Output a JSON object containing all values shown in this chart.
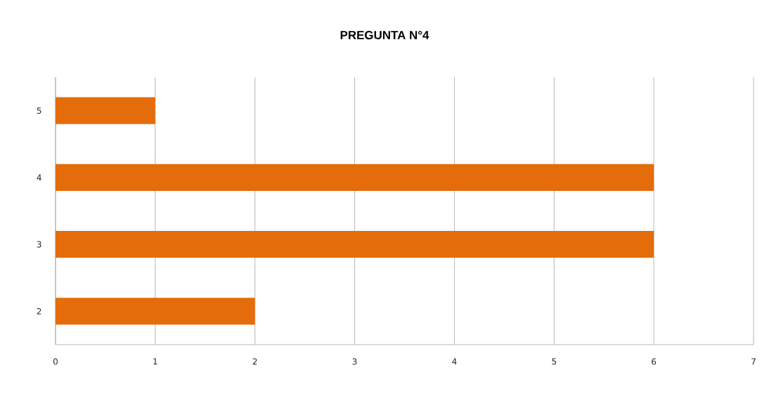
{
  "chart_data": {
    "type": "bar",
    "orientation": "horizontal",
    "title": "PREGUNTA N°4",
    "categories": [
      "5",
      "4",
      "3",
      "2"
    ],
    "values": [
      1,
      6,
      6,
      2
    ],
    "color": "#e46c0a",
    "xlim": [
      0,
      7
    ],
    "xticks": [
      0,
      1,
      2,
      3,
      4,
      5,
      6,
      7
    ],
    "grid": "x"
  }
}
